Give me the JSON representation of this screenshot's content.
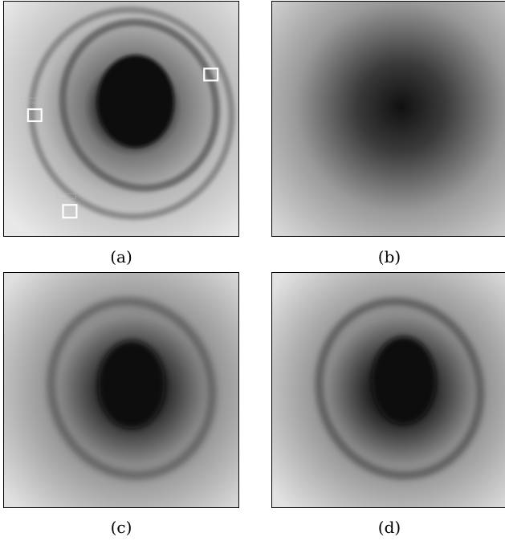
{
  "panels": [
    {
      "id": "a",
      "caption": "(a)"
    },
    {
      "id": "b",
      "caption": "(b)"
    },
    {
      "id": "c",
      "caption": "(c)"
    },
    {
      "id": "d",
      "caption": "(d)"
    }
  ],
  "colors": {
    "background": "#ffffff",
    "frame": "#000000",
    "marker": "#ffffff"
  }
}
